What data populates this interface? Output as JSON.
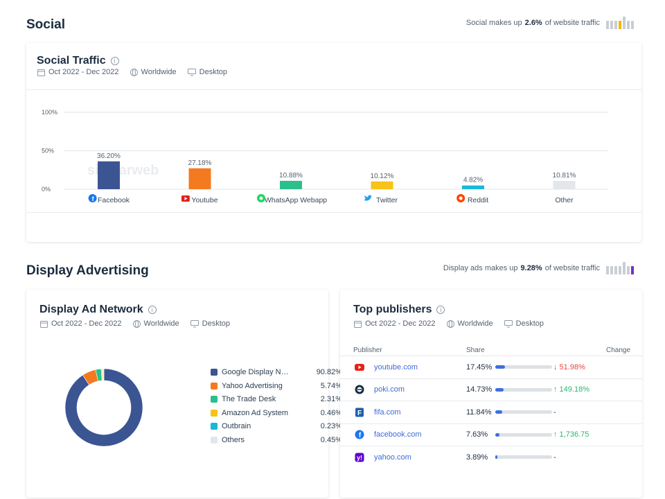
{
  "social": {
    "section_title": "Social",
    "summary_prefix": "Social makes up",
    "summary_value": "2.6%",
    "summary_suffix": "of website traffic",
    "card": {
      "title": "Social Traffic",
      "date_range": "Oct 2022 - Dec 2022",
      "region": "Worldwide",
      "device": "Desktop"
    }
  },
  "display": {
    "section_title": "Display Advertising",
    "summary_prefix": "Display ads makes up",
    "summary_value": "9.28%",
    "summary_suffix": "of website traffic",
    "network_card": {
      "title": "Display Ad Network",
      "date_range": "Oct 2022 - Dec 2022",
      "region": "Worldwide",
      "device": "Desktop"
    },
    "publishers_card": {
      "title": "Top publishers",
      "date_range": "Oct 2022 - Dec 2022",
      "region": "Worldwide",
      "device": "Desktop",
      "col_publisher": "Publisher",
      "col_share": "Share",
      "col_change": "Change",
      "rows": [
        {
          "domain": "youtube.com",
          "share": "17.45%",
          "share_value": 17.45,
          "change": "51.98%",
          "direction": "down",
          "arrow": "↓",
          "icon": "youtube-icon",
          "color": "#e62117"
        },
        {
          "domain": "poki.com",
          "share": "14.73%",
          "share_value": 14.73,
          "change": "149.18%",
          "direction": "up",
          "arrow": "↑",
          "icon": "poki-icon",
          "color": "#2a6fd8"
        },
        {
          "domain": "fifa.com",
          "share": "11.84%",
          "share_value": 11.84,
          "change": "-",
          "direction": "none",
          "arrow": "",
          "icon": "fifa-icon",
          "color": "#1f5fae"
        },
        {
          "domain": "facebook.com",
          "share": "7.63%",
          "share_value": 7.63,
          "change": "1,736.75",
          "direction": "up",
          "arrow": "↑",
          "icon": "facebook-icon",
          "color": "#1877f2"
        },
        {
          "domain": "yahoo.com",
          "share": "3.89%",
          "share_value": 3.89,
          "change": "-",
          "direction": "none",
          "arrow": "",
          "icon": "yahoo-icon",
          "color": "#6001d2"
        }
      ]
    }
  },
  "watermark": "similarweb",
  "chart_data": [
    {
      "type": "bar",
      "title": "Social Traffic",
      "categories": [
        "Facebook",
        "Youtube",
        "WhatsApp Webapp",
        "Twitter",
        "Reddit",
        "Other"
      ],
      "values": [
        36.2,
        27.18,
        10.88,
        10.12,
        4.82,
        10.81
      ],
      "labels": [
        "36.20%",
        "27.18%",
        "10.88%",
        "10.12%",
        "4.82%",
        "10.81%"
      ],
      "colors": [
        "#3b5593",
        "#f47a20",
        "#2bbf8c",
        "#f7c21a",
        "#17b8d8",
        "#e3e6ea"
      ],
      "icons": [
        "facebook-icon",
        "youtube-icon",
        "whatsapp-icon",
        "twitter-icon",
        "reddit-icon",
        ""
      ],
      "yticks": [
        "0%",
        "50%",
        "100%"
      ],
      "ylim": [
        0,
        100
      ],
      "grid": true
    },
    {
      "type": "pie",
      "title": "Display Ad Network",
      "categories": [
        "Google Display Ne...",
        "Yahoo Advertising",
        "The Trade Desk",
        "Amazon Ad System",
        "Outbrain",
        "Others"
      ],
      "values": [
        90.82,
        5.74,
        2.31,
        0.46,
        0.23,
        0.45
      ],
      "labels": [
        "90.82%",
        "5.74%",
        "2.31%",
        "0.46%",
        "0.23%",
        "0.45%"
      ],
      "colors": [
        "#3b5593",
        "#f47a20",
        "#2bbf8c",
        "#f7c21a",
        "#17b8d8",
        "#e3e6ea"
      ]
    }
  ],
  "colors": {
    "accent_blue": "#3e6fe0",
    "up_green": "#2bb673",
    "down_red": "#e2483d",
    "summary_bar_social": "#f7b500",
    "summary_bar_display": "#7b2fbf"
  }
}
